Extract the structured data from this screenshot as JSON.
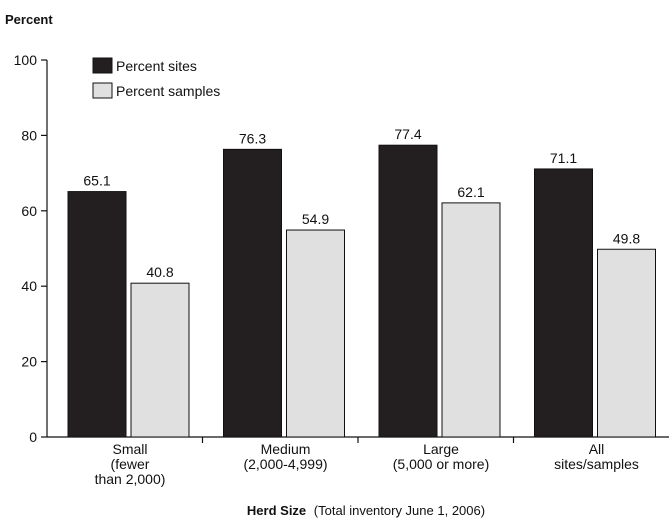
{
  "chart_data": {
    "type": "bar",
    "ylabel": "Percent",
    "xlabel_bold": "Herd Size",
    "xlabel_rest": "(Total inventory June 1, 2006)",
    "ylim": [
      0,
      100
    ],
    "yticks": [
      "0",
      "20",
      "40",
      "60",
      "80",
      "100"
    ],
    "categories": [
      [
        "Small",
        "(fewer",
        "than 2,000)"
      ],
      [
        "Medium",
        "(2,000-4,999)"
      ],
      [
        "Large",
        "(5,000 or more)"
      ],
      [
        "All",
        "sites/samples"
      ]
    ],
    "series": [
      {
        "name": "Percent sites",
        "color": "#231f20",
        "values": [
          65.1,
          76.3,
          77.4,
          71.1
        ],
        "labels": [
          "65.1",
          "76.3",
          "77.4",
          "71.1"
        ]
      },
      {
        "name": "Percent samples",
        "color": "#e0e0e0",
        "values": [
          40.8,
          54.9,
          62.1,
          49.8
        ],
        "labels": [
          "40.8",
          "54.9",
          "62.1",
          "49.8"
        ]
      }
    ],
    "legend_position": "top-left",
    "grid": false
  }
}
